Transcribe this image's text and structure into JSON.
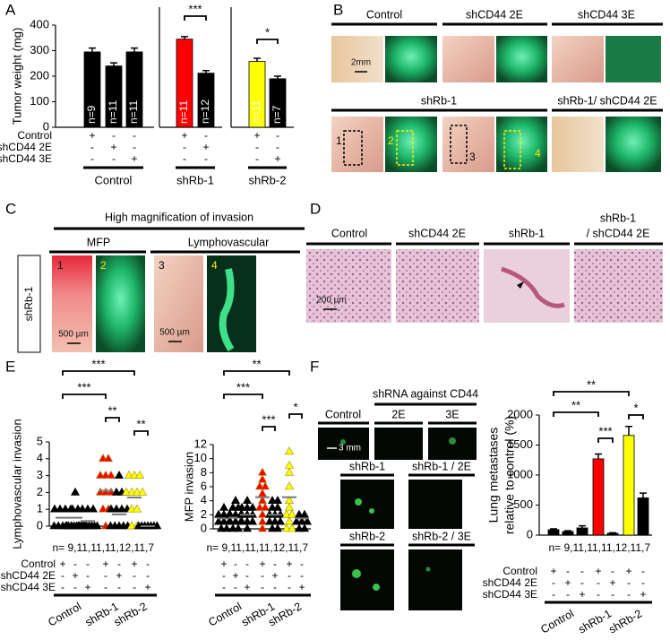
{
  "panel_labels": [
    "A",
    "B",
    "C",
    "D",
    "E",
    "F"
  ],
  "chart_data": [
    {
      "type": "bar",
      "y_label": [
        "Tumor weight (mg)"
      ],
      "ylim": [
        0,
        400
      ],
      "yticks": [
        0,
        100,
        200,
        300,
        400
      ],
      "values": [
        295,
        240,
        295,
        345,
        212,
        258,
        190
      ],
      "errors": [
        15,
        12,
        15,
        10,
        10,
        12,
        10
      ],
      "colors": [
        "#000000",
        "#000000",
        "#000000",
        "#ff0000",
        "#000000",
        "#ffff00",
        "#000000"
      ],
      "bar_labels": [
        "n=9",
        "n=11",
        "n=11",
        "n=11",
        "n=12",
        "n=11",
        "n=7"
      ],
      "significance": [
        {
          "from": 3,
          "to": 4,
          "label": "***"
        },
        {
          "from": 5,
          "to": 6,
          "label": "*"
        }
      ],
      "conditions": {
        "rows": [
          {
            "label": "Control",
            "signs": [
              "+",
              "-",
              "-",
              "+",
              "-",
              "+",
              "-"
            ]
          },
          {
            "label": "shCD44 2E",
            "signs": [
              "-",
              "+",
              "-",
              "-",
              "+",
              "-",
              "-"
            ]
          },
          {
            "label": "shCD44 3E",
            "signs": [
              "-",
              "-",
              "+",
              "-",
              "-",
              "-",
              "+"
            ]
          }
        ],
        "groups": [
          "Control",
          "shRb-1",
          "shRb-2"
        ]
      }
    },
    {
      "type": "scatter",
      "y_label": [
        "Lymphovascular invasion"
      ],
      "ylim": [
        0,
        5
      ],
      "yticks": [
        0,
        1,
        2,
        3,
        4,
        5
      ],
      "groups": [
        {
          "color": "#000000",
          "points": [
            0,
            0,
            0,
            0,
            0,
            1,
            1,
            1,
            1
          ],
          "mean": 0.5
        },
        {
          "color": "#000000",
          "points": [
            0,
            0,
            0,
            0,
            0,
            0,
            0,
            0,
            1,
            1,
            2
          ],
          "mean": 0.5
        },
        {
          "color": "#000000",
          "points": [
            0,
            0,
            0,
            0,
            0,
            0,
            0,
            0,
            1,
            1,
            1
          ],
          "mean": 0.3
        },
        {
          "color": "#ff0000",
          "points": [
            0,
            1,
            1,
            2,
            2,
            2,
            3,
            3,
            3,
            4,
            4
          ],
          "mean": 2.1
        },
        {
          "color": "#000000",
          "points": [
            0,
            0,
            0,
            0,
            0,
            1,
            1,
            1,
            1,
            2,
            2,
            3
          ],
          "mean": 0.7
        },
        {
          "color": "#ffff00",
          "points": [
            0,
            0,
            1,
            1,
            2,
            2,
            2,
            2,
            3,
            3,
            3
          ],
          "mean": 1.7
        },
        {
          "color": "#000000",
          "points": [
            0,
            0,
            0,
            0,
            0,
            0,
            0
          ],
          "mean": 0
        }
      ],
      "significance": [
        {
          "from": 0,
          "to": 5,
          "label": "***"
        },
        {
          "from": 0,
          "to": 3,
          "label": "***"
        },
        {
          "from": 3,
          "to": 4,
          "label": "**"
        },
        {
          "from": 5,
          "to": 6,
          "label": "**"
        }
      ],
      "n_text": "n= 9,11,11,11,12,11,7",
      "conditions": {
        "rows": [
          {
            "label": "Control",
            "signs": [
              "+",
              "-",
              "-",
              "+",
              "-",
              "+",
              "-"
            ]
          },
          {
            "label": "shCD44 2E",
            "signs": [
              "-",
              "+",
              "-",
              "-",
              "+",
              "-",
              "-"
            ]
          },
          {
            "label": "shCD44 3E",
            "signs": [
              "-",
              "-",
              "+",
              "-",
              "-",
              "-",
              "+"
            ]
          }
        ],
        "groups": [
          "Control",
          "shRb-1",
          "shRb-2"
        ]
      }
    },
    {
      "type": "scatter",
      "y_label": [
        "MFP invasion"
      ],
      "ylim": [
        0,
        12
      ],
      "yticks": [
        0,
        2,
        4,
        6,
        8,
        10,
        12
      ],
      "groups": [
        {
          "color": "#000000",
          "points": [
            0,
            0,
            1,
            1,
            1,
            2,
            2,
            2,
            3
          ],
          "mean": 1.5
        },
        {
          "color": "#000000",
          "points": [
            0,
            0,
            1,
            1,
            1,
            2,
            2,
            2,
            3,
            3,
            4
          ],
          "mean": 1.6
        },
        {
          "color": "#000000",
          "points": [
            0,
            1,
            1,
            1,
            2,
            2,
            2,
            3,
            3,
            3,
            4
          ],
          "mean": 2
        },
        {
          "color": "#ff0000",
          "points": [
            0,
            1,
            2,
            3,
            3,
            4,
            5,
            6,
            6,
            7,
            8
          ],
          "mean": 4.5
        },
        {
          "color": "#000000",
          "points": [
            0,
            0,
            1,
            1,
            1,
            2,
            2,
            2,
            3,
            3,
            4,
            4
          ],
          "mean": 2
        },
        {
          "color": "#ffff00",
          "points": [
            0,
            0,
            1,
            2,
            2,
            3,
            4,
            6,
            8,
            9,
            11
          ],
          "mean": 4.5
        },
        {
          "color": "#000000",
          "points": [
            0,
            0,
            1,
            1,
            1,
            2,
            2
          ],
          "mean": 1.5
        }
      ],
      "significance": [
        {
          "from": 0,
          "to": 5,
          "label": "**"
        },
        {
          "from": 0,
          "to": 3,
          "label": "***"
        },
        {
          "from": 3,
          "to": 4,
          "label": "***"
        },
        {
          "from": 5,
          "to": 6,
          "label": "*"
        }
      ],
      "n_text": "n= 9,11,11,11,12,11,7",
      "conditions": {
        "rows": [
          {
            "signs": [
              "+",
              "-",
              "-",
              "+",
              "-",
              "+",
              "-"
            ]
          },
          {
            "signs": [
              "-",
              "+",
              "-",
              "-",
              "+",
              "-",
              "-"
            ]
          },
          {
            "signs": [
              "-",
              "-",
              "+",
              "-",
              "-",
              "-",
              "+"
            ]
          }
        ],
        "groups": [
          "Control",
          "shRb-1",
          "shRb-2"
        ]
      }
    },
    {
      "type": "bar",
      "y_label": [
        "Lung metastases",
        "relative to control (%)"
      ],
      "ylim": [
        0,
        2000
      ],
      "yticks": [
        0,
        500,
        1000,
        1500,
        2000
      ],
      "values": [
        90,
        60,
        120,
        1270,
        30,
        1660,
        620
      ],
      "errors": [
        15,
        12,
        35,
        80,
        10,
        150,
        80
      ],
      "colors": [
        "#000000",
        "#000000",
        "#000000",
        "#ff0000",
        "#000000",
        "#ffff00",
        "#000000"
      ],
      "significance": [
        {
          "from": 0,
          "to": 5,
          "label": "**"
        },
        {
          "from": 0,
          "to": 3,
          "label": "**"
        },
        {
          "from": 3,
          "to": 4,
          "label": "***"
        },
        {
          "from": 5,
          "to": 6,
          "label": "*"
        }
      ],
      "n_text": "n= 9,11,11,11,12,11,7",
      "conditions": {
        "rows": [
          {
            "label": "Control",
            "signs": [
              "+",
              "-",
              "-",
              "+",
              "-",
              "+",
              "-"
            ]
          },
          {
            "label": "shCD44 2E",
            "signs": [
              "-",
              "+",
              "-",
              "-",
              "+",
              "-",
              "-"
            ]
          },
          {
            "label": "shCD44 3E",
            "signs": [
              "-",
              "-",
              "+",
              "-",
              "-",
              "-",
              "+"
            ]
          }
        ],
        "groups": [
          "Control",
          "shRb-1",
          "shRb-2"
        ]
      }
    }
  ],
  "panel_b": {
    "row1": [
      "Control",
      "shCD44 2E",
      "shCD44 3E"
    ],
    "row2": [
      "shRb-1",
      "shRb-1/ shCD44 2E"
    ],
    "scale": "2mm",
    "markers": [
      "1",
      "2",
      "3",
      "4"
    ]
  },
  "panel_c": {
    "title": "High magnification of invasion",
    "columns": [
      "MFP",
      "Lymphovascular"
    ],
    "row_label": "shRb-1",
    "markers": [
      "1",
      "2",
      "3",
      "4"
    ],
    "scales": [
      "500 µm",
      "500 µm"
    ]
  },
  "panel_d": {
    "headings": [
      "Control",
      "shCD44 2E",
      "shRb-1"
    ],
    "heading_4": [
      "shRb-1",
      "/ shCD44 2E"
    ],
    "scale": "200 µm"
  },
  "panel_f_images": {
    "title": "shRNA against CD44",
    "row1": [
      "Control",
      "2E",
      "3E"
    ],
    "scale": "3 mm",
    "row2": [
      "shRb-1",
      "shRb-1 / 2E"
    ],
    "row3": [
      "shRb-2",
      "shRb-2 / 3E"
    ]
  }
}
